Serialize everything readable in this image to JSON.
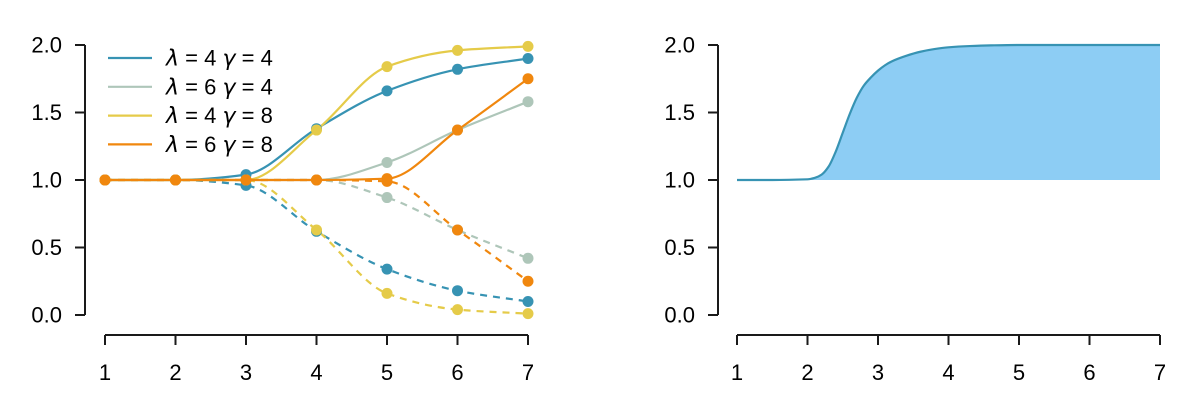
{
  "figure": {
    "background": "#ffffff",
    "axis_color": "#1a1a1a",
    "text_color": "#000000"
  },
  "chart_data": [
    {
      "id": "left-panel",
      "type": "line",
      "title": "",
      "xlabel": "",
      "ylabel": "",
      "xlim": [
        1,
        7
      ],
      "ylim": [
        0,
        2
      ],
      "grid": false,
      "x": [
        1,
        2,
        3,
        4,
        5,
        6,
        7
      ],
      "xticks": [
        "1",
        "2",
        "3",
        "4",
        "5",
        "6",
        "7"
      ],
      "ytick_values": [
        0,
        0.5,
        1,
        1.5,
        2
      ],
      "yticks": [
        "0.0",
        "0.5",
        "1.0",
        "1.5",
        "2.0"
      ],
      "legend_position": "top-left",
      "marker": "filled-circle",
      "series": [
        {
          "name": "λ = 4 γ = 4",
          "color": "#3793b3",
          "solid": [
            1.0,
            1.0,
            1.04,
            1.38,
            1.66,
            1.82,
            1.9
          ],
          "dashed": [
            1.0,
            1.0,
            0.96,
            0.62,
            0.34,
            0.18,
            0.1
          ]
        },
        {
          "name": "λ = 6 γ = 4",
          "color": "#aec6b9",
          "solid": [
            1.0,
            1.0,
            1.0,
            1.0,
            1.13,
            1.37,
            1.58
          ],
          "dashed": [
            1.0,
            1.0,
            1.0,
            1.0,
            0.87,
            0.63,
            0.42
          ]
        },
        {
          "name": "λ = 4 γ = 8",
          "color": "#e5cb49",
          "solid": [
            1.0,
            1.0,
            1.0,
            1.37,
            1.84,
            1.96,
            1.99
          ],
          "dashed": [
            1.0,
            1.0,
            1.0,
            0.63,
            0.16,
            0.04,
            0.01
          ]
        },
        {
          "name": "λ = 6 γ = 8",
          "color": "#f0870e",
          "solid": [
            1.0,
            1.0,
            1.0,
            1.0,
            1.01,
            1.37,
            1.75
          ],
          "dashed": [
            1.0,
            1.0,
            1.0,
            1.0,
            0.99,
            0.63,
            0.25
          ]
        }
      ]
    },
    {
      "id": "right-panel",
      "type": "area",
      "title": "",
      "xlabel": "",
      "ylabel": "",
      "xlim": [
        1,
        7
      ],
      "ylim": [
        0,
        2
      ],
      "grid": false,
      "xticks": [
        "1",
        "2",
        "3",
        "4",
        "5",
        "6",
        "7"
      ],
      "ytick_values": [
        0,
        0.5,
        1,
        1.5,
        2
      ],
      "yticks": [
        "0.0",
        "0.5",
        "1.0",
        "1.5",
        "2.0"
      ],
      "baseline": 1.0,
      "fill_color": "#8dcdf4",
      "stroke_color": "#3793b3",
      "curve": {
        "x": [
          1,
          1.5,
          2,
          2.1,
          2.2,
          2.3,
          2.4,
          2.5,
          2.6,
          2.7,
          2.8,
          2.9,
          3.0,
          3.1,
          3.2,
          3.4,
          3.6,
          3.8,
          4.0,
          4.3,
          4.6,
          5.0,
          5.5,
          6.0,
          6.5,
          7.0
        ],
        "y": [
          1.0,
          1.0,
          1.005,
          1.015,
          1.04,
          1.1,
          1.21,
          1.35,
          1.49,
          1.61,
          1.7,
          1.76,
          1.81,
          1.85,
          1.88,
          1.92,
          1.95,
          1.97,
          1.983,
          1.992,
          1.997,
          2.0,
          2.0,
          2.0,
          2.0,
          2.0
        ]
      }
    }
  ]
}
